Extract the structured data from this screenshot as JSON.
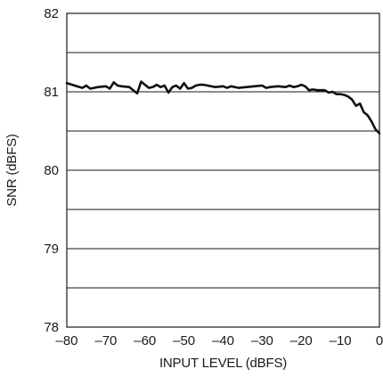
{
  "chart_data": {
    "type": "line",
    "title": "",
    "xlabel": "INPUT LEVEL (dBFS)",
    "ylabel": "SNR (dBFS)",
    "xlim": [
      -80,
      0
    ],
    "ylim": [
      78,
      82
    ],
    "x_ticks": [
      -80,
      -70,
      -60,
      -50,
      -40,
      -30,
      -20,
      -10,
      0
    ],
    "x_tick_labels": [
      "–80",
      "–70",
      "–60",
      "–50",
      "–40",
      "–30",
      "–20",
      "–10",
      "0"
    ],
    "y_ticks": [
      78,
      79,
      80,
      81,
      82
    ],
    "y_tick_labels": [
      "78",
      "79",
      "80",
      "81",
      "82"
    ],
    "y_gridlines": [
      78.5,
      79,
      79.5,
      80,
      80.5,
      81,
      81.5
    ],
    "grid": "horizontal",
    "legend": "none",
    "colors": {
      "line": "#111111",
      "grid": "#1a1a1a",
      "axis": "#1a1a1a"
    },
    "series": [
      {
        "x": [
          -80,
          -78,
          -76,
          -75,
          -74,
          -72,
          -70,
          -69,
          -68,
          -67,
          -66,
          -64,
          -62,
          -61,
          -60,
          -59,
          -58,
          -57,
          -56,
          -55,
          -54,
          -53,
          -52,
          -51,
          -50,
          -49,
          -48,
          -47,
          -46,
          -45,
          -44,
          -42,
          -40,
          -39,
          -38,
          -36,
          -34,
          -32,
          -30,
          -29,
          -28,
          -26,
          -24,
          -23,
          -22,
          -21,
          -20,
          -19,
          -18,
          -17,
          -16,
          -14,
          -13,
          -12,
          -11,
          -10,
          -9,
          -8,
          -7,
          -6,
          -5,
          -4,
          -3,
          -2,
          -1,
          0
        ],
        "y": [
          81.11,
          81.08,
          81.05,
          81.08,
          81.04,
          81.06,
          81.07,
          81.04,
          81.12,
          81.08,
          81.07,
          81.06,
          80.98,
          81.13,
          81.09,
          81.05,
          81.06,
          81.09,
          81.06,
          81.08,
          80.99,
          81.06,
          81.08,
          81.04,
          81.11,
          81.04,
          81.05,
          81.08,
          81.09,
          81.09,
          81.08,
          81.06,
          81.07,
          81.05,
          81.07,
          81.05,
          81.06,
          81.07,
          81.08,
          81.05,
          81.06,
          81.07,
          81.06,
          81.08,
          81.06,
          81.07,
          81.09,
          81.07,
          81.02,
          81.03,
          81.02,
          81.02,
          80.99,
          81.0,
          80.97,
          80.97,
          80.96,
          80.94,
          80.9,
          80.82,
          80.85,
          80.74,
          80.7,
          80.62,
          80.52,
          80.47
        ]
      }
    ]
  }
}
